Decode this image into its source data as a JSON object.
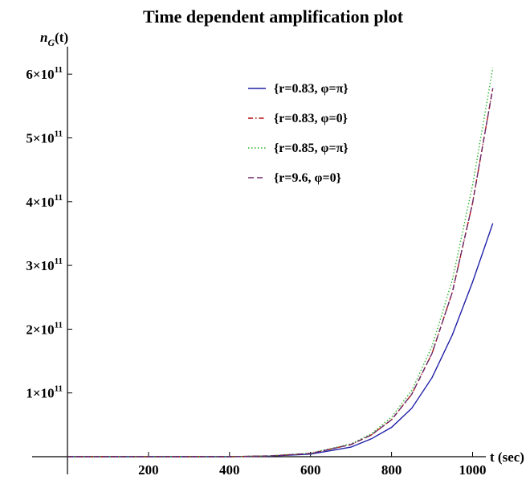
{
  "chart_data": {
    "type": "line",
    "title": "Time dependent amplification plot",
    "ylabel_main": "n",
    "ylabel_sub": "G",
    "ylabel_rest": "(t)",
    "xlabel": "t (sec)",
    "xlim": [
      0,
      1060
    ],
    "ylim": [
      0,
      630000000000.0
    ],
    "x_ticks": [
      {
        "value": 200,
        "label": "200"
      },
      {
        "value": 400,
        "label": "400"
      },
      {
        "value": 600,
        "label": "600"
      },
      {
        "value": 800,
        "label": "800"
      },
      {
        "value": 1000,
        "label": "1000"
      }
    ],
    "y_ticks": [
      {
        "value": 100000000000.0,
        "coef": "1",
        "mantissa": "10",
        "exp": "11"
      },
      {
        "value": 200000000000.0,
        "coef": "2",
        "mantissa": "10",
        "exp": "11"
      },
      {
        "value": 300000000000.0,
        "coef": "3",
        "mantissa": "10",
        "exp": "11"
      },
      {
        "value": 400000000000.0,
        "coef": "4",
        "mantissa": "10",
        "exp": "11"
      },
      {
        "value": 500000000000.0,
        "coef": "5",
        "mantissa": "10",
        "exp": "11"
      },
      {
        "value": 600000000000.0,
        "coef": "6",
        "mantissa": "10",
        "exp": "11"
      }
    ],
    "legend_position": "top-right",
    "series": [
      {
        "name": "{r=0.83, φ=π}",
        "color": "#1f1fa8",
        "dash": "solid",
        "x": [
          0,
          200,
          400,
          500,
          600,
          700,
          750,
          800,
          850,
          900,
          950,
          1000,
          1050
        ],
        "y": [
          0,
          0,
          0,
          1000000000.0,
          4000000000.0,
          15000000000.0,
          28000000000.0,
          46000000000.0,
          76000000000.0,
          124000000000.0,
          191000000000.0,
          274000000000.0,
          366000000000.0
        ]
      },
      {
        "name": "{r=0.83, φ=0}",
        "color": "#b01010",
        "dash": "dashdot",
        "x": [
          0,
          200,
          400,
          500,
          600,
          700,
          750,
          800,
          850,
          900,
          950,
          1000,
          1050
        ],
        "y": [
          0,
          0,
          0,
          1200000000.0,
          5000000000.0,
          19000000000.0,
          34000000000.0,
          58000000000.0,
          98000000000.0,
          162000000000.0,
          258000000000.0,
          398000000000.0,
          578000000000.0
        ]
      },
      {
        "name": "{r=0.85, φ=π}",
        "color": "#2db52d",
        "dash": "dotted",
        "x": [
          0,
          200,
          400,
          500,
          600,
          700,
          750,
          800,
          850,
          900,
          950,
          1000,
          1050
        ],
        "y": [
          0,
          0,
          0,
          1300000000.0,
          5500000000.0,
          20000000000.0,
          36000000000.0,
          62000000000.0,
          104000000000.0,
          173000000000.0,
          277000000000.0,
          426000000000.0,
          610000000000.0
        ]
      },
      {
        "name": "{r=9.6, φ=0}",
        "color": "#6a2a6a",
        "dash": "dashed",
        "x": [
          0,
          200,
          400,
          500,
          600,
          700,
          750,
          800,
          850,
          900,
          950,
          1000,
          1050
        ],
        "y": [
          0,
          0,
          0,
          1200000000.0,
          5000000000.0,
          19000000000.0,
          34000000000.0,
          58000000000.0,
          98000000000.0,
          162000000000.0,
          258000000000.0,
          398000000000.0,
          578000000000.0
        ]
      }
    ]
  }
}
